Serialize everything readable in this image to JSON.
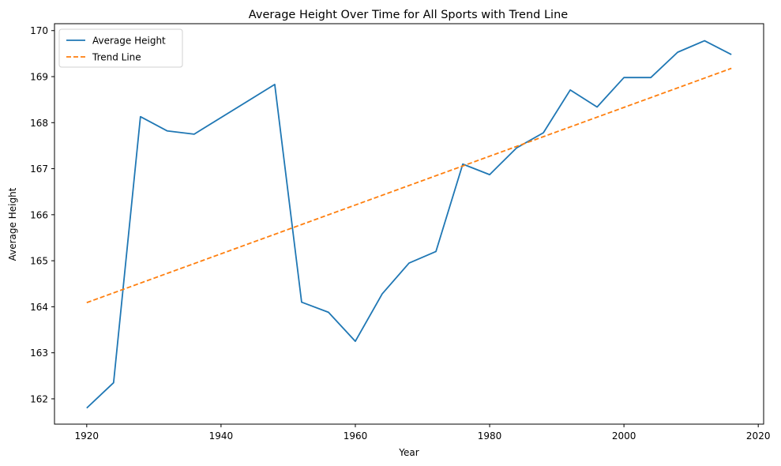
{
  "chart_data": {
    "type": "line",
    "title": "Average Height Over Time for All Sports with Trend Line",
    "xlabel": "Year",
    "ylabel": "Average Height",
    "xlim": [
      1915.2,
      2020.8
    ],
    "ylim": [
      161.45,
      170.15
    ],
    "xticks": [
      1920,
      1940,
      1960,
      1980,
      2000,
      2020
    ],
    "yticks": [
      162,
      163,
      164,
      165,
      166,
      167,
      168,
      169,
      170
    ],
    "grid": false,
    "legend_position": "top-left",
    "series": [
      {
        "name": "Average Height",
        "color": "#1f77b4",
        "style": "solid",
        "x": [
          1920,
          1924,
          1928,
          1932,
          1936,
          1948,
          1952,
          1956,
          1960,
          1964,
          1968,
          1972,
          1976,
          1980,
          1984,
          1988,
          1992,
          1996,
          2000,
          2004,
          2008,
          2012,
          2016
        ],
        "y": [
          161.8,
          162.35,
          168.13,
          167.82,
          167.75,
          168.83,
          164.1,
          163.88,
          163.25,
          164.28,
          164.95,
          165.2,
          167.1,
          166.87,
          167.45,
          167.78,
          168.71,
          168.34,
          168.98,
          168.98,
          169.53,
          169.78,
          169.48
        ]
      },
      {
        "name": "Trend Line",
        "color": "#ff7f0e",
        "style": "dashed",
        "x": [
          1920,
          2016
        ],
        "y": [
          164.09,
          169.18
        ]
      }
    ]
  }
}
